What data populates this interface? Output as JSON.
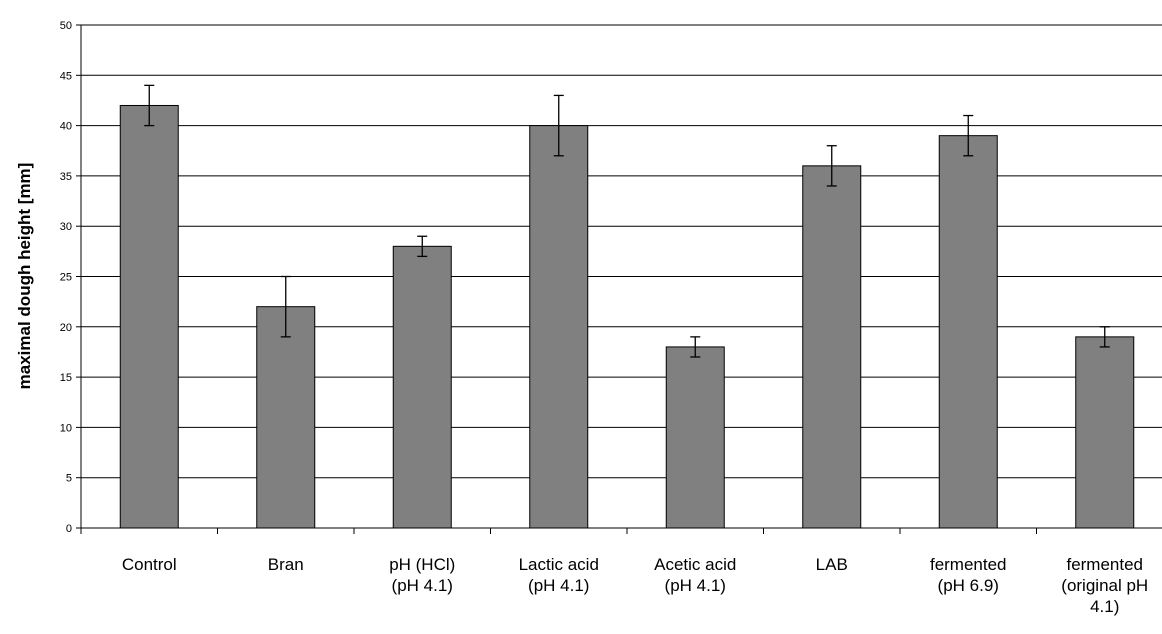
{
  "chart_data": {
    "type": "bar",
    "title": "",
    "xlabel": "",
    "ylabel": "maximal dough height [mm]",
    "ylim": [
      0,
      50
    ],
    "yticks": [
      0,
      5,
      10,
      15,
      20,
      25,
      30,
      35,
      40,
      45,
      50
    ],
    "grid": true,
    "categories": [
      [
        "Control"
      ],
      [
        "Bran"
      ],
      [
        "pH (HCl)",
        "(pH 4.1)"
      ],
      [
        "Lactic acid",
        "(pH 4.1)"
      ],
      [
        "Acetic acid",
        "(pH 4.1)"
      ],
      [
        "LAB"
      ],
      [
        "fermented",
        "(pH 6.9)"
      ],
      [
        "fermented",
        "(original pH",
        "4.1)"
      ]
    ],
    "values": [
      42,
      22,
      28,
      40,
      18,
      36,
      39,
      19
    ],
    "error": [
      2,
      3,
      1,
      3,
      1,
      2,
      2,
      1
    ],
    "colors": {
      "bar": "#808080",
      "bar_stroke": "#000000",
      "grid": "#000000",
      "text": "#000000"
    }
  }
}
